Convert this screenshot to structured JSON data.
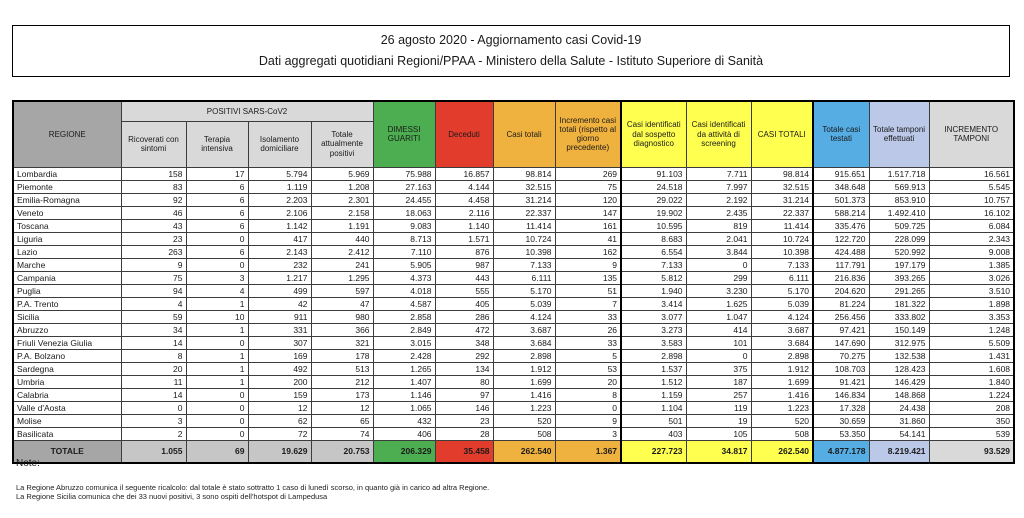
{
  "colors": {
    "header_gray": "#a6a6a6",
    "subheader_gray": "#d9d9d9",
    "total_gray": "#c6c6c6",
    "green": "#4cae50",
    "red": "#e23d2c",
    "orange": "#f0b23e",
    "yellow": "#ffff4f",
    "blue": "#55ade4",
    "periwinkle": "#bcc8e8"
  },
  "title": {
    "line1": "26 agosto 2020 - Aggiornamento casi Covid-19",
    "line2": "Dati aggregati quotidiani Regioni/PPAA - Ministero della Salute - Istituto Superiore di Sanità"
  },
  "table": {
    "headers": {
      "regione": "REGIONE",
      "positivi_group": "POSITIVI SARS-CoV2",
      "sub": [
        "Ricoverati con sintomi",
        "Terapia intensiva",
        "Isolamento domiciliare",
        "Totale attualmente positivi"
      ],
      "dimessi": "DIMESSI GUARITI",
      "deceduti": "Deceduti",
      "casi_totali": "Casi totali",
      "incremento_casi": "Incremento casi totali (rispetto al giorno precedente)",
      "sospetto": "Casi identificati dal sospetto diagnostico",
      "screening": "Casi identificati da attività di screening",
      "casi_totali_caps": "CASI TOTALI",
      "testati": "Totale casi testati",
      "tamponi": "Totale tamponi effettuati",
      "incremento_tamponi": "INCREMENTO TAMPONI"
    },
    "rows": [
      [
        "Lombardia",
        "158",
        "17",
        "5.794",
        "5.969",
        "75.988",
        "16.857",
        "98.814",
        "269",
        "91.103",
        "7.711",
        "98.814",
        "915.651",
        "1.517.718",
        "16.561"
      ],
      [
        "Piemonte",
        "83",
        "6",
        "1.119",
        "1.208",
        "27.163",
        "4.144",
        "32.515",
        "75",
        "24.518",
        "7.997",
        "32.515",
        "348.648",
        "569.913",
        "5.545"
      ],
      [
        "Emilia-Romagna",
        "92",
        "6",
        "2.203",
        "2.301",
        "24.455",
        "4.458",
        "31.214",
        "120",
        "29.022",
        "2.192",
        "31.214",
        "501.373",
        "853.910",
        "10.757"
      ],
      [
        "Veneto",
        "46",
        "6",
        "2.106",
        "2.158",
        "18.063",
        "2.116",
        "22.337",
        "147",
        "19.902",
        "2.435",
        "22.337",
        "588.214",
        "1.492.410",
        "16.102"
      ],
      [
        "Toscana",
        "43",
        "6",
        "1.142",
        "1.191",
        "9.083",
        "1.140",
        "11.414",
        "161",
        "10.595",
        "819",
        "11.414",
        "335.476",
        "509.725",
        "6.084"
      ],
      [
        "Liguria",
        "23",
        "0",
        "417",
        "440",
        "8.713",
        "1.571",
        "10.724",
        "41",
        "8.683",
        "2.041",
        "10.724",
        "122.720",
        "228.099",
        "2.343"
      ],
      [
        "Lazio",
        "263",
        "6",
        "2.143",
        "2.412",
        "7.110",
        "876",
        "10.398",
        "162",
        "6.554",
        "3.844",
        "10.398",
        "424.488",
        "520.992",
        "9.008"
      ],
      [
        "Marche",
        "9",
        "0",
        "232",
        "241",
        "5.905",
        "987",
        "7.133",
        "9",
        "7.133",
        "0",
        "7.133",
        "117.791",
        "197.179",
        "1.385"
      ],
      [
        "Campania",
        "75",
        "3",
        "1.217",
        "1.295",
        "4.373",
        "443",
        "6.111",
        "135",
        "5.812",
        "299",
        "6.111",
        "216.836",
        "393.265",
        "3.026"
      ],
      [
        "Puglia",
        "94",
        "4",
        "499",
        "597",
        "4.018",
        "555",
        "5.170",
        "51",
        "1.940",
        "3.230",
        "5.170",
        "204.620",
        "291.265",
        "3.510"
      ],
      [
        "P.A. Trento",
        "4",
        "1",
        "42",
        "47",
        "4.587",
        "405",
        "5.039",
        "7",
        "3.414",
        "1.625",
        "5.039",
        "81.224",
        "181.322",
        "1.898"
      ],
      [
        "Sicilia",
        "59",
        "10",
        "911",
        "980",
        "2.858",
        "286",
        "4.124",
        "33",
        "3.077",
        "1.047",
        "4.124",
        "256.456",
        "333.802",
        "3.353"
      ],
      [
        "Abruzzo",
        "34",
        "1",
        "331",
        "366",
        "2.849",
        "472",
        "3.687",
        "26",
        "3.273",
        "414",
        "3.687",
        "97.421",
        "150.149",
        "1.248"
      ],
      [
        "Friuli Venezia Giulia",
        "14",
        "0",
        "307",
        "321",
        "3.015",
        "348",
        "3.684",
        "33",
        "3.583",
        "101",
        "3.684",
        "147.690",
        "312.975",
        "5.509"
      ],
      [
        "P.A. Bolzano",
        "8",
        "1",
        "169",
        "178",
        "2.428",
        "292",
        "2.898",
        "5",
        "2.898",
        "0",
        "2.898",
        "70.275",
        "132.538",
        "1.431"
      ],
      [
        "Sardegna",
        "20",
        "1",
        "492",
        "513",
        "1.265",
        "134",
        "1.912",
        "53",
        "1.537",
        "375",
        "1.912",
        "108.703",
        "128.423",
        "1.608"
      ],
      [
        "Umbria",
        "11",
        "1",
        "200",
        "212",
        "1.407",
        "80",
        "1.699",
        "20",
        "1.512",
        "187",
        "1.699",
        "91.421",
        "146.429",
        "1.840"
      ],
      [
        "Calabria",
        "14",
        "0",
        "159",
        "173",
        "1.146",
        "97",
        "1.416",
        "8",
        "1.159",
        "257",
        "1.416",
        "146.834",
        "148.868",
        "1.224"
      ],
      [
        "Valle d'Aosta",
        "0",
        "0",
        "12",
        "12",
        "1.065",
        "146",
        "1.223",
        "0",
        "1.104",
        "119",
        "1.223",
        "17.328",
        "24.438",
        "208"
      ],
      [
        "Molise",
        "3",
        "0",
        "62",
        "65",
        "432",
        "23",
        "520",
        "9",
        "501",
        "19",
        "520",
        "30.659",
        "31.860",
        "350"
      ],
      [
        "Basilicata",
        "2",
        "0",
        "72",
        "74",
        "406",
        "28",
        "508",
        "3",
        "403",
        "105",
        "508",
        "53.350",
        "54.141",
        "539"
      ]
    ],
    "total_row": [
      "TOTALE",
      "1.055",
      "69",
      "19.629",
      "20.753",
      "206.329",
      "35.458",
      "262.540",
      "1.367",
      "227.723",
      "34.817",
      "262.540",
      "4.877.178",
      "8.219.421",
      "93.529"
    ]
  },
  "notes": {
    "title": "Note:",
    "lines": [
      "La Regione Abruzzo comunica il seguente ricalcolo: dal totale è stato sottratto 1 caso di lunedì scorso, in quanto già in carico ad altra Regione.",
      "La Regione Sicilia comunica che dei 33 nuovi positivi, 3 sono ospiti dell'hotspot di Lampedusa"
    ]
  }
}
